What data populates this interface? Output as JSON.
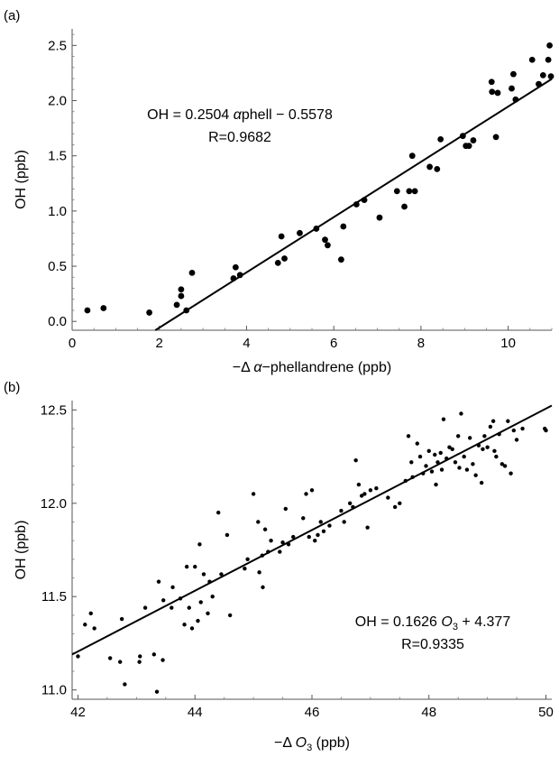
{
  "chart_data": [
    {
      "type": "scatter",
      "panel_label": "(a)",
      "xlabel": {
        "pre": "−Δ ",
        "italic": "α",
        "post": "−phellandrene (ppb)"
      },
      "ylabel": "OH (ppb)",
      "xlim": [
        0,
        11
      ],
      "ylim": [
        -0.08,
        2.65
      ],
      "xticks": [
        0,
        2,
        4,
        6,
        8,
        10
      ],
      "yticks": [
        0.0,
        0.5,
        1.0,
        1.5,
        2.0,
        2.5
      ],
      "yticks_text": [
        "0.0",
        "0.5",
        "1.0",
        "1.5",
        "2.0",
        "2.5"
      ],
      "xticks_text": [
        "0",
        "2",
        "4",
        "6",
        "8",
        "10"
      ],
      "fit": {
        "slope": 0.2504,
        "intercept": -0.5578
      },
      "annotation": {
        "line1_pre": "OH = 0.2504 ",
        "line1_italic": "α",
        "line1_post": "phell − 0.5578",
        "line2": "R=0.9682"
      },
      "points": [
        [
          0.35,
          0.1
        ],
        [
          0.72,
          0.12
        ],
        [
          1.77,
          0.08
        ],
        [
          2.4,
          0.15
        ],
        [
          2.5,
          0.23
        ],
        [
          2.5,
          0.29
        ],
        [
          2.62,
          0.1
        ],
        [
          2.75,
          0.44
        ],
        [
          3.7,
          0.39
        ],
        [
          3.75,
          0.49
        ],
        [
          3.85,
          0.42
        ],
        [
          4.72,
          0.53
        ],
        [
          4.8,
          0.77
        ],
        [
          4.87,
          0.57
        ],
        [
          5.22,
          0.8
        ],
        [
          5.6,
          0.84
        ],
        [
          5.8,
          0.74
        ],
        [
          5.86,
          0.69
        ],
        [
          6.17,
          0.56
        ],
        [
          6.22,
          0.86
        ],
        [
          6.52,
          1.06
        ],
        [
          6.7,
          1.1
        ],
        [
          7.05,
          0.94
        ],
        [
          7.45,
          1.18
        ],
        [
          7.62,
          1.04
        ],
        [
          7.73,
          1.18
        ],
        [
          7.8,
          1.5
        ],
        [
          7.86,
          1.18
        ],
        [
          8.2,
          1.4
        ],
        [
          8.37,
          1.38
        ],
        [
          8.45,
          1.65
        ],
        [
          8.96,
          1.68
        ],
        [
          9.03,
          1.59
        ],
        [
          9.1,
          1.59
        ],
        [
          9.2,
          1.64
        ],
        [
          9.62,
          2.17
        ],
        [
          9.63,
          2.08
        ],
        [
          9.72,
          1.67
        ],
        [
          9.76,
          2.07
        ],
        [
          10.08,
          2.11
        ],
        [
          10.12,
          2.24
        ],
        [
          10.17,
          2.01
        ],
        [
          10.55,
          2.37
        ],
        [
          10.7,
          2.15
        ],
        [
          10.8,
          2.23
        ],
        [
          10.92,
          2.37
        ],
        [
          10.95,
          2.5
        ],
        [
          10.98,
          2.22
        ]
      ]
    },
    {
      "type": "scatter",
      "panel_label": "(b)",
      "xlabel": {
        "pre": "−Δ ",
        "italic": "O",
        "sub": "3",
        "post": " (ppb)"
      },
      "ylabel": "OH (ppb)",
      "xlim": [
        41.9,
        50.1
      ],
      "ylim": [
        10.95,
        12.55
      ],
      "xticks": [
        42,
        44,
        46,
        48,
        50
      ],
      "yticks": [
        11.0,
        11.5,
        12.0,
        12.5
      ],
      "yticks_text": [
        "11.0",
        "11.5",
        "12.0",
        "12.5"
      ],
      "xticks_text": [
        "42",
        "44",
        "46",
        "48",
        "50"
      ],
      "fit": {
        "slope": 0.1626,
        "intercept": 4.377
      },
      "annotation": {
        "line1_pre": "OH = 0.1626 ",
        "line1_italic": "O",
        "line1_sub": "3",
        "line1_post": " + 4.377",
        "line2": "R=0.9335"
      },
      "points": [
        [
          42.0,
          11.18
        ],
        [
          42.12,
          11.35
        ],
        [
          42.22,
          11.41
        ],
        [
          42.28,
          11.33
        ],
        [
          42.55,
          11.17
        ],
        [
          42.72,
          11.15
        ],
        [
          42.75,
          11.38
        ],
        [
          42.8,
          11.03
        ],
        [
          43.05,
          11.15
        ],
        [
          43.06,
          11.18
        ],
        [
          43.15,
          11.44
        ],
        [
          43.3,
          11.19
        ],
        [
          43.35,
          10.99
        ],
        [
          43.38,
          11.58
        ],
        [
          43.45,
          11.16
        ],
        [
          43.46,
          11.48
        ],
        [
          43.6,
          11.44
        ],
        [
          43.62,
          11.55
        ],
        [
          43.75,
          11.49
        ],
        [
          43.82,
          11.35
        ],
        [
          43.86,
          11.66
        ],
        [
          43.9,
          11.44
        ],
        [
          43.95,
          11.33
        ],
        [
          44.0,
          11.66
        ],
        [
          44.05,
          11.37
        ],
        [
          44.08,
          11.78
        ],
        [
          44.1,
          11.47
        ],
        [
          44.15,
          11.62
        ],
        [
          44.22,
          11.41
        ],
        [
          44.25,
          11.58
        ],
        [
          44.3,
          11.5
        ],
        [
          44.4,
          11.95
        ],
        [
          44.45,
          11.62
        ],
        [
          44.55,
          11.83
        ],
        [
          44.6,
          11.4
        ],
        [
          44.85,
          11.65
        ],
        [
          44.9,
          11.7
        ],
        [
          45.0,
          12.05
        ],
        [
          45.08,
          11.9
        ],
        [
          45.1,
          11.63
        ],
        [
          45.15,
          11.72
        ],
        [
          45.16,
          11.55
        ],
        [
          45.2,
          11.86
        ],
        [
          45.25,
          11.74
        ],
        [
          45.3,
          11.8
        ],
        [
          45.45,
          11.74
        ],
        [
          45.5,
          11.79
        ],
        [
          45.55,
          11.97
        ],
        [
          45.6,
          11.78
        ],
        [
          45.68,
          11.82
        ],
        [
          45.85,
          11.92
        ],
        [
          45.9,
          12.05
        ],
        [
          45.95,
          11.82
        ],
        [
          46.0,
          12.07
        ],
        [
          46.05,
          11.8
        ],
        [
          46.1,
          11.83
        ],
        [
          46.15,
          11.9
        ],
        [
          46.2,
          11.85
        ],
        [
          46.3,
          11.88
        ],
        [
          46.5,
          11.96
        ],
        [
          46.55,
          11.9
        ],
        [
          46.65,
          12.0
        ],
        [
          46.7,
          11.98
        ],
        [
          46.75,
          12.23
        ],
        [
          46.8,
          12.1
        ],
        [
          46.85,
          12.04
        ],
        [
          46.9,
          12.05
        ],
        [
          46.95,
          11.87
        ],
        [
          47.0,
          12.07
        ],
        [
          47.1,
          12.08
        ],
        [
          47.3,
          12.03
        ],
        [
          47.42,
          11.98
        ],
        [
          47.5,
          12.0
        ],
        [
          47.6,
          12.12
        ],
        [
          47.65,
          12.36
        ],
        [
          47.7,
          12.22
        ],
        [
          47.72,
          12.14
        ],
        [
          47.8,
          12.32
        ],
        [
          47.85,
          12.25
        ],
        [
          47.9,
          12.16
        ],
        [
          47.95,
          12.2
        ],
        [
          48.0,
          12.28
        ],
        [
          48.05,
          12.17
        ],
        [
          48.1,
          12.26
        ],
        [
          48.12,
          12.1
        ],
        [
          48.15,
          12.22
        ],
        [
          48.2,
          12.27
        ],
        [
          48.22,
          12.18
        ],
        [
          48.25,
          12.45
        ],
        [
          48.3,
          12.24
        ],
        [
          48.35,
          12.3
        ],
        [
          48.4,
          12.29
        ],
        [
          48.45,
          12.22
        ],
        [
          48.5,
          12.36
        ],
        [
          48.52,
          12.19
        ],
        [
          48.55,
          12.48
        ],
        [
          48.6,
          12.25
        ],
        [
          48.65,
          12.18
        ],
        [
          48.7,
          12.35
        ],
        [
          48.75,
          12.21
        ],
        [
          48.8,
          12.15
        ],
        [
          48.85,
          12.31
        ],
        [
          48.9,
          12.11
        ],
        [
          48.92,
          12.29
        ],
        [
          48.95,
          12.36
        ],
        [
          49.0,
          12.3
        ],
        [
          49.05,
          12.41
        ],
        [
          49.1,
          12.44
        ],
        [
          49.12,
          12.28
        ],
        [
          49.15,
          12.25
        ],
        [
          49.2,
          12.37
        ],
        [
          49.25,
          12.21
        ],
        [
          49.3,
          12.2
        ],
        [
          49.35,
          12.44
        ],
        [
          49.4,
          12.16
        ],
        [
          49.45,
          12.39
        ],
        [
          49.5,
          12.34
        ],
        [
          49.6,
          12.4
        ],
        [
          49.98,
          12.4
        ],
        [
          50.0,
          12.39
        ]
      ]
    }
  ]
}
